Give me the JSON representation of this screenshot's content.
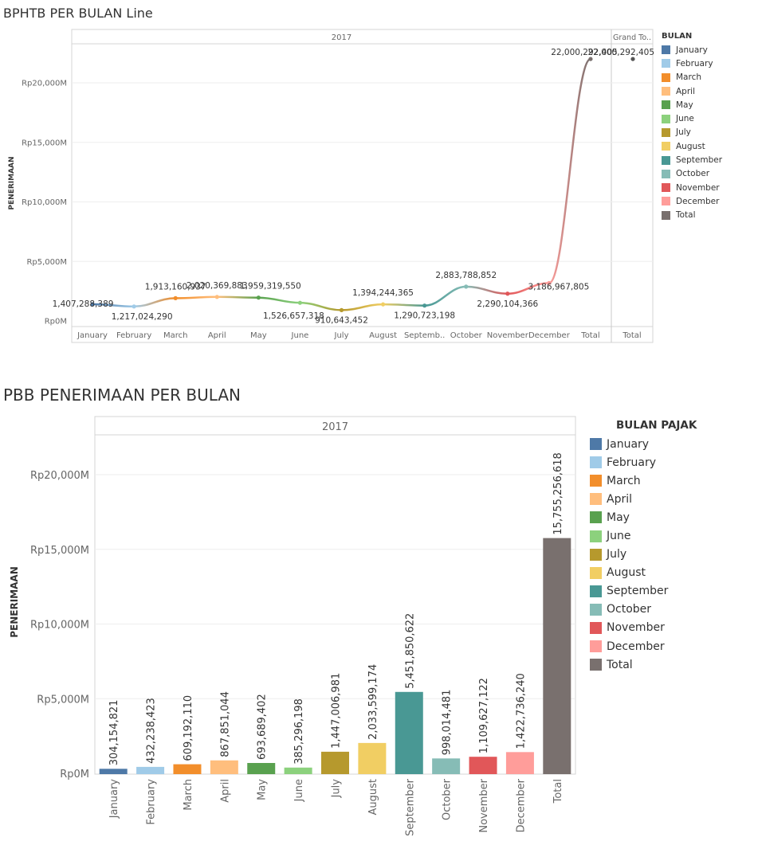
{
  "chart_data": [
    {
      "type": "line",
      "title": "BPHTB PER BULAN Line",
      "header": "2017",
      "grand_total_header": "Grand To..",
      "ylabel": "PENERIMAAN",
      "ylim": [
        0,
        23500000000
      ],
      "yticks": [
        {
          "value": 0,
          "label": "Rp0M"
        },
        {
          "value": 5000000000,
          "label": "Rp5,000M"
        },
        {
          "value": 10000000000,
          "label": "Rp10,000M"
        },
        {
          "value": 15000000000,
          "label": "Rp15,000M"
        },
        {
          "value": 20000000000,
          "label": "Rp20,000M"
        }
      ],
      "categories": [
        "January",
        "February",
        "March",
        "April",
        "May",
        "June",
        "July",
        "August",
        "Septemb..",
        "October",
        "November",
        "December",
        "Total"
      ],
      "values": [
        1407288389,
        1217024290,
        1913160937,
        2020369883,
        1959319550,
        1526657318,
        910643452,
        1394244365,
        1290723198,
        2883788852,
        2290104366,
        3186967805,
        22000292405
      ],
      "data_labels": [
        "1,407,288,389",
        "1,217,024,290",
        "1,913,160,937",
        "2,020,369,883",
        "1,959,319,550",
        "1,526,657,318",
        "910,643,452",
        "1,394,244,365",
        "1,290,723,198",
        "2,883,788,852",
        "2,290,104,366",
        "3,186,967,805",
        "22,000,292,405"
      ],
      "grand_total": {
        "category": "Total",
        "value": 22000292405,
        "label": "22,000,292,405"
      },
      "legend_title": "BULAN",
      "legend": [
        "January",
        "February",
        "March",
        "April",
        "May",
        "June",
        "July",
        "August",
        "September",
        "October",
        "November",
        "December",
        "Total"
      ],
      "colors": [
        "#4e79a7",
        "#a0cbe8",
        "#f28e2b",
        "#ffbe7d",
        "#59a14f",
        "#8cd17d",
        "#b6992d",
        "#f1ce63",
        "#499894",
        "#86bcb6",
        "#e15759",
        "#ff9d9a",
        "#79706e"
      ],
      "grid": true
    },
    {
      "type": "bar",
      "title": "PBB PENERIMAAN PER BULAN",
      "header": "2017",
      "ylabel": "PENERIMAAN",
      "ylim": [
        0,
        22500000000
      ],
      "yticks": [
        {
          "value": 0,
          "label": "Rp0M"
        },
        {
          "value": 5000000000,
          "label": "Rp5,000M"
        },
        {
          "value": 10000000000,
          "label": "Rp10,000M"
        },
        {
          "value": 15000000000,
          "label": "Rp15,000M"
        },
        {
          "value": 20000000000,
          "label": "Rp20,000M"
        }
      ],
      "categories": [
        "January",
        "February",
        "March",
        "April",
        "May",
        "June",
        "July",
        "August",
        "September",
        "October",
        "November",
        "December",
        "Total"
      ],
      "values": [
        304154821,
        432238423,
        609192110,
        867851044,
        693689402,
        385296198,
        1447006981,
        2033599174,
        5451850622,
        998014481,
        1109627122,
        1422736240,
        15755256618
      ],
      "data_labels": [
        "304,154,821",
        "432,238,423",
        "609,192,110",
        "867,851,044",
        "693,689,402",
        "385,296,198",
        "1,447,006,981",
        "2,033,599,174",
        "5,451,850,622",
        "998,014,481",
        "1,109,627,122",
        "1,422,736,240",
        "15,755,256,618"
      ],
      "legend_title": "BULAN PAJAK",
      "legend": [
        "January",
        "February",
        "March",
        "April",
        "May",
        "June",
        "July",
        "August",
        "September",
        "October",
        "November",
        "December",
        "Total"
      ],
      "colors": [
        "#4e79a7",
        "#a0cbe8",
        "#f28e2b",
        "#ffbe7d",
        "#59a14f",
        "#8cd17d",
        "#b6992d",
        "#f1ce63",
        "#499894",
        "#86bcb6",
        "#e15759",
        "#ff9d9a",
        "#79706e"
      ],
      "grid": true
    }
  ]
}
